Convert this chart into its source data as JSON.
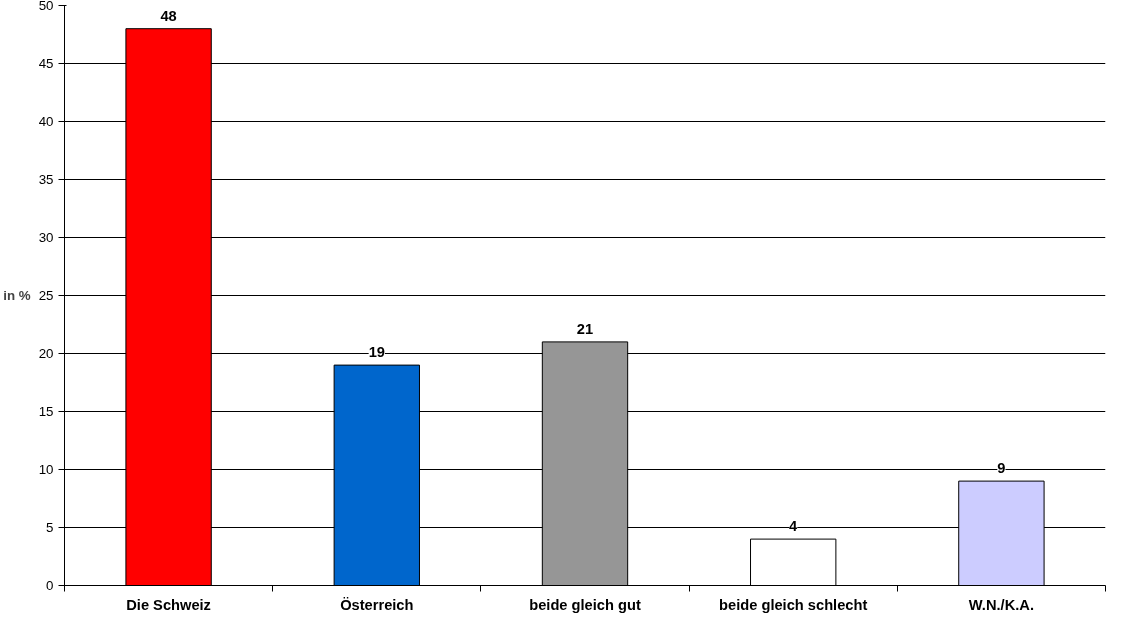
{
  "chart_data": {
    "type": "bar",
    "ylabel": "in %",
    "categories": [
      "Die Schweiz",
      "Österreich",
      "beide gleich gut",
      "beide gleich schlecht",
      "W.N./K.A."
    ],
    "values": [
      48,
      19,
      21,
      4,
      9
    ],
    "colors": [
      "#ff0000",
      "#0066cc",
      "#969696",
      "#ffffff",
      "#ccccff"
    ],
    "ylim": [
      0,
      50
    ],
    "yticks": [
      0,
      5,
      10,
      15,
      20,
      25,
      30,
      35,
      40,
      45,
      50
    ],
    "grid": "y",
    "data_labels": true
  }
}
